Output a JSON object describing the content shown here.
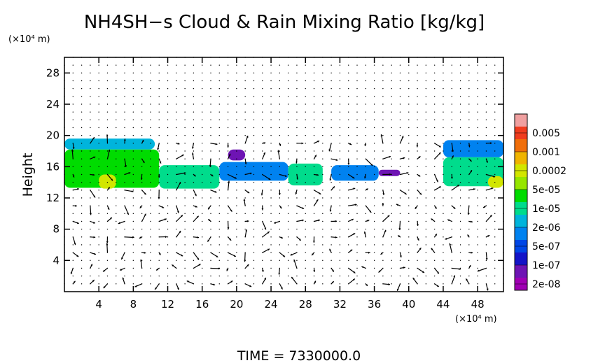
{
  "chart_data": {
    "type": "heatmap",
    "title": "NH4SH−s Cloud & Rain Mixing Ratio [kg/kg]",
    "ylabel": "Height",
    "y_unit": "(×10⁴ m)",
    "x_unit": "(×10⁴ m)",
    "footer": "TIME  =  7330000.0",
    "xlim": [
      0,
      51
    ],
    "ylim": [
      0,
      30
    ],
    "x_ticks": [
      4,
      8,
      12,
      16,
      20,
      24,
      28,
      32,
      36,
      40,
      44,
      48
    ],
    "y_ticks": [
      4,
      8,
      12,
      16,
      20,
      24,
      28
    ],
    "grid": true,
    "legend": {
      "placement": "right",
      "labels": [
        "0.005",
        "0.001",
        "0.0002",
        "5e-05",
        "1e-05",
        "2e-06",
        "5e-07",
        "1e-07",
        "2e-08"
      ],
      "colors": [
        "#f0a0a0",
        "#f03c1e",
        "#f06e0a",
        "#f0b400",
        "#d2e600",
        "#96e600",
        "#00dc00",
        "#00dc8c",
        "#00b4dc",
        "#0082f0",
        "#0046e6",
        "#1414c8",
        "#6e14b4",
        "#a000b4"
      ]
    },
    "cloud_regions": [
      {
        "x": [
          0,
          10.5
        ],
        "y": [
          18.2,
          19.6
        ],
        "level": 5
      },
      {
        "x": [
          0,
          11
        ],
        "y": [
          13.3,
          18.2
        ],
        "level": 7
      },
      {
        "x": [
          4,
          6
        ],
        "y": [
          13.2,
          15
        ],
        "level": 9
      },
      {
        "x": [
          11,
          18
        ],
        "y": [
          13.2,
          16.2
        ],
        "level": 6
      },
      {
        "x": [
          18,
          26
        ],
        "y": [
          14.2,
          16.6
        ],
        "level": 4
      },
      {
        "x": [
          26,
          30
        ],
        "y": [
          13.6,
          16.4
        ],
        "level": 6
      },
      {
        "x": [
          31,
          36.5
        ],
        "y": [
          14.2,
          16.2
        ],
        "level": 4
      },
      {
        "x": [
          19,
          21
        ],
        "y": [
          16.8,
          18.2
        ],
        "level": 1
      },
      {
        "x": [
          36.5,
          39
        ],
        "y": [
          14.8,
          15.6
        ],
        "level": 1
      },
      {
        "x": [
          44,
          51
        ],
        "y": [
          17.2,
          19.4
        ],
        "level": 4
      },
      {
        "x": [
          44,
          51
        ],
        "y": [
          13.5,
          17.2
        ],
        "level": 6
      },
      {
        "x": [
          49.2,
          51
        ],
        "y": [
          13.3,
          14.8
        ],
        "level": 9
      }
    ]
  }
}
